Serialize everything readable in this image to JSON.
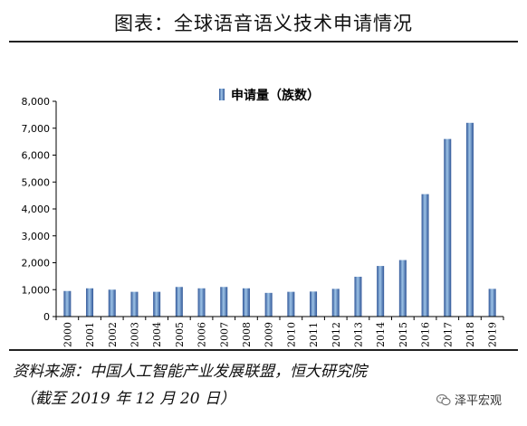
{
  "header": {
    "title": "图表：全球语音语义技术申请情况"
  },
  "source": {
    "line1": "资料来源：中国人工智能产业发展联盟，恒大研究院",
    "line2": "（截至 2019 年 12 月 20 日）"
  },
  "watermark": {
    "text": "泽平宏观",
    "icon": "wechat-icon"
  },
  "colors": {
    "bar": "#4f81bd",
    "bar_dark": "#2f5597",
    "bar_light": "#9dc3e6",
    "axis": "#000000",
    "rule": "#222222"
  },
  "chart_data": {
    "type": "bar",
    "title": "",
    "xlabel": "",
    "ylabel": "",
    "legend_position": "top-center",
    "grid": false,
    "ylim": [
      0,
      8000
    ],
    "yticks": [
      0,
      1000,
      2000,
      3000,
      4000,
      5000,
      6000,
      7000,
      8000
    ],
    "ytick_labels": [
      "0",
      "1,000",
      "2,000",
      "3,000",
      "4,000",
      "5,000",
      "6,000",
      "7,000",
      "8,000"
    ],
    "categories": [
      "2000",
      "2001",
      "2002",
      "2003",
      "2004",
      "2005",
      "2006",
      "2007",
      "2008",
      "2009",
      "2010",
      "2011",
      "2012",
      "2013",
      "2014",
      "2015",
      "2016",
      "2017",
      "2018",
      "2019"
    ],
    "series": [
      {
        "name": "申请量（族数）",
        "values": [
          950,
          1050,
          1000,
          920,
          920,
          1100,
          1050,
          1100,
          1050,
          880,
          920,
          930,
          1030,
          1480,
          1880,
          2100,
          4550,
          6600,
          7200,
          1030
        ]
      }
    ]
  }
}
